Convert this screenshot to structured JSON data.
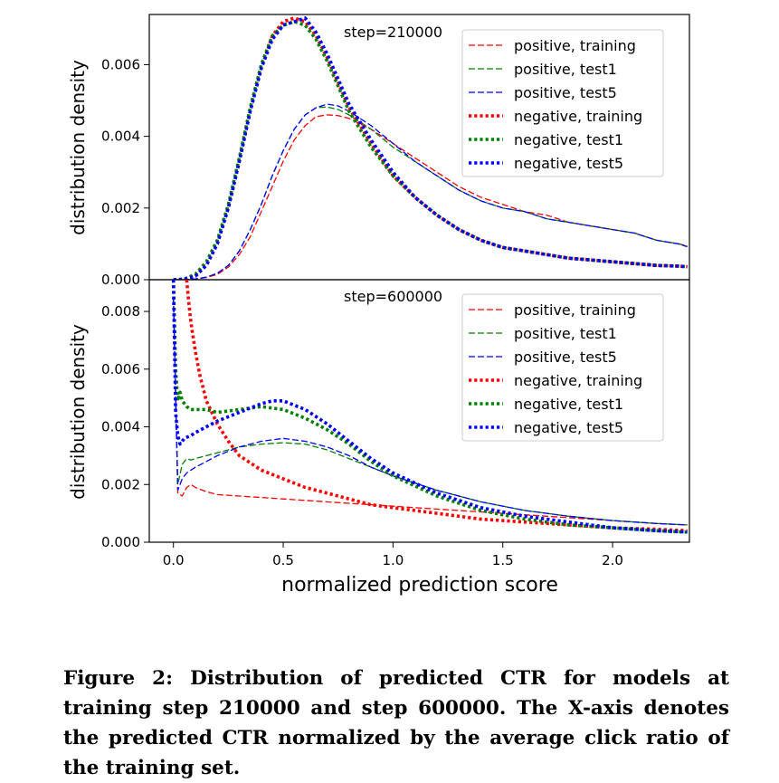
{
  "caption": "Figure 2: Distribution of predicted CTR for models at training step 210000 and step 600000.  The X-axis denotes the predicted CTR normalized by the average click ratio of the training set.",
  "chart_data": [
    {
      "type": "line",
      "annotation": "step=210000",
      "xlabel": "normalized prediction score",
      "ylabel": "distribution density",
      "xlim": [
        -0.11,
        2.35
      ],
      "ylim": [
        0,
        0.0074
      ],
      "yticks": [
        0.0,
        0.002,
        0.004,
        0.006
      ],
      "ytick_labels": [
        "0.000",
        "0.002",
        "0.004",
        "0.006"
      ],
      "legend_position": "top-right",
      "series": [
        {
          "name": "positive, training",
          "color": "#ff0000",
          "style": "dashed",
          "x": [
            0.0,
            0.05,
            0.1,
            0.15,
            0.2,
            0.25,
            0.3,
            0.35,
            0.4,
            0.45,
            0.5,
            0.55,
            0.6,
            0.65,
            0.7,
            0.75,
            0.8,
            0.9,
            1.0,
            1.1,
            1.2,
            1.3,
            1.4,
            1.5,
            1.6,
            1.7,
            1.8,
            1.9,
            2.0,
            2.1,
            2.2,
            2.3,
            2.34
          ],
          "y": [
            0.0,
            0.0,
            2e-05,
            6e-05,
            0.00015,
            0.00035,
            0.0007,
            0.0012,
            0.0019,
            0.0026,
            0.0033,
            0.0039,
            0.0043,
            0.00455,
            0.0046,
            0.00458,
            0.0045,
            0.0042,
            0.0038,
            0.0034,
            0.003,
            0.0026,
            0.0023,
            0.0021,
            0.0019,
            0.0018,
            0.0016,
            0.0015,
            0.0014,
            0.0013,
            0.0011,
            0.001,
            0.00095
          ]
        },
        {
          "name": "positive, test1",
          "color": "#008000",
          "style": "dashed",
          "x": [
            0.0,
            0.05,
            0.1,
            0.15,
            0.2,
            0.25,
            0.3,
            0.35,
            0.4,
            0.45,
            0.5,
            0.55,
            0.6,
            0.65,
            0.7,
            0.75,
            0.8,
            0.9,
            1.0,
            1.1,
            1.2,
            1.3,
            1.4,
            1.5,
            1.6,
            1.7,
            1.8,
            1.9,
            2.0,
            2.1,
            2.2,
            2.3,
            2.34
          ],
          "y": [
            0.0,
            0.0,
            2e-05,
            7e-05,
            0.00018,
            0.0004,
            0.0008,
            0.0014,
            0.0021,
            0.0029,
            0.0036,
            0.0042,
            0.0046,
            0.0048,
            0.00482,
            0.00475,
            0.0046,
            0.0042,
            0.0037,
            0.0033,
            0.0029,
            0.0025,
            0.0022,
            0.002,
            0.0019,
            0.0017,
            0.0016,
            0.0015,
            0.0014,
            0.0013,
            0.0011,
            0.001,
            0.00093
          ]
        },
        {
          "name": "positive, test5",
          "color": "#0000ff",
          "style": "dashed",
          "x": [
            0.0,
            0.05,
            0.1,
            0.15,
            0.2,
            0.25,
            0.3,
            0.35,
            0.4,
            0.45,
            0.5,
            0.55,
            0.6,
            0.65,
            0.7,
            0.75,
            0.8,
            0.9,
            1.0,
            1.1,
            1.2,
            1.3,
            1.4,
            1.5,
            1.6,
            1.7,
            1.8,
            1.9,
            2.0,
            2.1,
            2.2,
            2.3,
            2.34
          ],
          "y": [
            0.0,
            0.0,
            2e-05,
            7e-05,
            0.00018,
            0.0004,
            0.0008,
            0.0014,
            0.0021,
            0.0029,
            0.0036,
            0.0042,
            0.0046,
            0.0048,
            0.0049,
            0.00485,
            0.0047,
            0.0043,
            0.0038,
            0.0033,
            0.0029,
            0.0025,
            0.0022,
            0.002,
            0.0019,
            0.0017,
            0.0016,
            0.0015,
            0.0014,
            0.0013,
            0.0011,
            0.001,
            0.00092
          ]
        },
        {
          "name": "negative, training",
          "color": "#ff0000",
          "style": "dotted",
          "x": [
            0.0,
            0.05,
            0.1,
            0.15,
            0.2,
            0.25,
            0.3,
            0.35,
            0.4,
            0.45,
            0.5,
            0.55,
            0.6,
            0.65,
            0.7,
            0.75,
            0.8,
            0.9,
            1.0,
            1.1,
            1.2,
            1.3,
            1.4,
            1.5,
            1.6,
            1.7,
            1.8,
            1.9,
            2.0,
            2.1,
            2.2,
            2.3,
            2.34
          ],
          "y": [
            0.0,
            1e-05,
            0.0001,
            0.0004,
            0.001,
            0.002,
            0.0033,
            0.0047,
            0.0059,
            0.0068,
            0.0072,
            0.0073,
            0.0072,
            0.0068,
            0.0062,
            0.0055,
            0.0048,
            0.0038,
            0.0029,
            0.0023,
            0.0018,
            0.0014,
            0.0011,
            0.0009,
            0.0008,
            0.0007,
            0.0006,
            0.00055,
            0.0005,
            0.00045,
            0.0004,
            0.00038,
            0.00036
          ]
        },
        {
          "name": "negative, test1",
          "color": "#008000",
          "style": "dotted",
          "x": [
            0.0,
            0.05,
            0.1,
            0.15,
            0.2,
            0.25,
            0.3,
            0.35,
            0.4,
            0.45,
            0.5,
            0.55,
            0.6,
            0.65,
            0.7,
            0.75,
            0.8,
            0.9,
            1.0,
            1.1,
            1.2,
            1.3,
            1.4,
            1.5,
            1.6,
            1.7,
            1.8,
            1.9,
            2.0,
            2.1,
            2.2,
            2.3,
            2.34
          ],
          "y": [
            0.0,
            2e-05,
            0.00015,
            0.0005,
            0.0011,
            0.0021,
            0.0034,
            0.0048,
            0.006,
            0.0068,
            0.0071,
            0.0072,
            0.0071,
            0.0067,
            0.0061,
            0.0054,
            0.0047,
            0.0037,
            0.0029,
            0.0023,
            0.0018,
            0.0014,
            0.0011,
            0.0009,
            0.0008,
            0.0007,
            0.0006,
            0.00055,
            0.0005,
            0.00045,
            0.0004,
            0.00038,
            0.00036
          ]
        },
        {
          "name": "negative, test5",
          "color": "#0000ff",
          "style": "dotted",
          "x": [
            0.0,
            0.05,
            0.1,
            0.15,
            0.2,
            0.25,
            0.3,
            0.35,
            0.4,
            0.45,
            0.5,
            0.55,
            0.6,
            0.65,
            0.7,
            0.75,
            0.8,
            0.9,
            1.0,
            1.1,
            1.2,
            1.3,
            1.4,
            1.5,
            1.6,
            1.7,
            1.8,
            1.9,
            2.0,
            2.1,
            2.2,
            2.3,
            2.34
          ],
          "y": [
            0.0,
            1e-05,
            0.0001,
            0.0004,
            0.001,
            0.002,
            0.0033,
            0.0047,
            0.0059,
            0.0067,
            0.0071,
            0.0072,
            0.0073,
            0.0069,
            0.0063,
            0.0056,
            0.0049,
            0.0039,
            0.003,
            0.0023,
            0.0018,
            0.0014,
            0.0011,
            0.0009,
            0.0008,
            0.0007,
            0.0006,
            0.00055,
            0.0005,
            0.00045,
            0.0004,
            0.00038,
            0.00036
          ]
        }
      ]
    },
    {
      "type": "line",
      "annotation": "step=600000",
      "xlabel": "normalized prediction score",
      "ylabel": "distribution density",
      "xlim": [
        -0.11,
        2.35
      ],
      "ylim": [
        0,
        0.0091
      ],
      "xticks": [
        0.0,
        0.5,
        1.0,
        1.5,
        2.0
      ],
      "xtick_labels": [
        "0.0",
        "0.5",
        "1.0",
        "1.5",
        "2.0"
      ],
      "yticks": [
        0.0,
        0.002,
        0.004,
        0.006,
        0.008
      ],
      "ytick_labels": [
        "0.000",
        "0.002",
        "0.004",
        "0.006",
        "0.008"
      ],
      "legend_position": "top-right",
      "series": [
        {
          "name": "positive, training",
          "color": "#ff0000",
          "style": "dashed",
          "x": [
            0.0,
            0.02,
            0.04,
            0.06,
            0.08,
            0.1,
            0.15,
            0.2,
            0.3,
            0.4,
            0.5,
            0.6,
            0.7,
            0.8,
            0.9,
            1.0,
            1.2,
            1.4,
            1.6,
            1.8,
            2.0,
            2.2,
            2.34
          ],
          "y": [
            0.0085,
            0.0017,
            0.0016,
            0.0019,
            0.002,
            0.0019,
            0.00175,
            0.00165,
            0.0016,
            0.00155,
            0.0015,
            0.00145,
            0.0014,
            0.00135,
            0.0013,
            0.00125,
            0.00115,
            0.00105,
            0.00095,
            0.00085,
            0.00075,
            0.00065,
            0.0006
          ]
        },
        {
          "name": "positive, test1",
          "color": "#008000",
          "style": "dashed",
          "x": [
            0.0,
            0.02,
            0.04,
            0.06,
            0.08,
            0.1,
            0.15,
            0.2,
            0.3,
            0.4,
            0.5,
            0.6,
            0.7,
            0.8,
            0.9,
            1.0,
            1.2,
            1.4,
            1.6,
            1.8,
            2.0,
            2.2,
            2.34
          ],
          "y": [
            0.0085,
            0.002,
            0.0027,
            0.0029,
            0.00285,
            0.0029,
            0.003,
            0.0031,
            0.0033,
            0.0034,
            0.00345,
            0.0034,
            0.0032,
            0.0029,
            0.0026,
            0.0023,
            0.0018,
            0.0014,
            0.0011,
            0.0009,
            0.00075,
            0.00065,
            0.0006
          ]
        },
        {
          "name": "positive, test5",
          "color": "#0000ff",
          "style": "dashed",
          "x": [
            0.0,
            0.02,
            0.04,
            0.06,
            0.08,
            0.1,
            0.15,
            0.2,
            0.3,
            0.4,
            0.5,
            0.6,
            0.7,
            0.8,
            0.9,
            1.0,
            1.2,
            1.4,
            1.6,
            1.8,
            2.0,
            2.2,
            2.34
          ],
          "y": [
            0.0085,
            0.0018,
            0.0022,
            0.0024,
            0.0025,
            0.0026,
            0.0028,
            0.003,
            0.0033,
            0.0035,
            0.0036,
            0.0035,
            0.0033,
            0.003,
            0.0026,
            0.0023,
            0.0018,
            0.0014,
            0.0011,
            0.0009,
            0.00075,
            0.00065,
            0.0006
          ]
        },
        {
          "name": "negative, training",
          "color": "#ff0000",
          "style": "dotted",
          "x": [
            0.06,
            0.07,
            0.08,
            0.1,
            0.12,
            0.15,
            0.2,
            0.25,
            0.3,
            0.4,
            0.5,
            0.6,
            0.7,
            0.8,
            0.9,
            1.0,
            1.2,
            1.4,
            1.6,
            1.8,
            2.0,
            2.2,
            2.34
          ],
          "y": [
            0.0091,
            0.0083,
            0.0076,
            0.0066,
            0.0058,
            0.0049,
            0.0041,
            0.0035,
            0.003,
            0.0025,
            0.0022,
            0.0019,
            0.0017,
            0.0015,
            0.0013,
            0.0012,
            0.001,
            0.0008,
            0.0007,
            0.0006,
            0.0005,
            0.00045,
            0.0004
          ]
        },
        {
          "name": "negative, test1",
          "color": "#008000",
          "style": "dotted",
          "x": [
            0.0,
            0.01,
            0.02,
            0.03,
            0.04,
            0.06,
            0.08,
            0.1,
            0.15,
            0.2,
            0.3,
            0.4,
            0.5,
            0.6,
            0.7,
            0.8,
            0.9,
            1.0,
            1.2,
            1.4,
            1.6,
            1.8,
            2.0,
            2.2,
            2.34
          ],
          "y": [
            0.0091,
            0.006,
            0.0049,
            0.0052,
            0.0049,
            0.0047,
            0.0046,
            0.0046,
            0.0046,
            0.0045,
            0.0046,
            0.0047,
            0.0046,
            0.0043,
            0.0039,
            0.0034,
            0.0028,
            0.0023,
            0.0016,
            0.0011,
            0.0008,
            0.0006,
            0.0005,
            0.0004,
            0.00035
          ]
        },
        {
          "name": "negative, test5",
          "color": "#0000ff",
          "style": "dotted",
          "x": [
            0.0,
            0.01,
            0.02,
            0.03,
            0.05,
            0.08,
            0.1,
            0.15,
            0.2,
            0.3,
            0.4,
            0.45,
            0.5,
            0.6,
            0.7,
            0.8,
            0.9,
            1.0,
            1.2,
            1.4,
            1.6,
            1.8,
            2.0,
            2.2,
            2.34
          ],
          "y": [
            0.0091,
            0.0045,
            0.0037,
            0.0034,
            0.0036,
            0.0037,
            0.0038,
            0.004,
            0.0042,
            0.0045,
            0.0048,
            0.0049,
            0.0049,
            0.0046,
            0.0041,
            0.0035,
            0.0029,
            0.0024,
            0.0017,
            0.0012,
            0.0009,
            0.0007,
            0.0005,
            0.0004,
            0.00035
          ]
        }
      ]
    }
  ]
}
